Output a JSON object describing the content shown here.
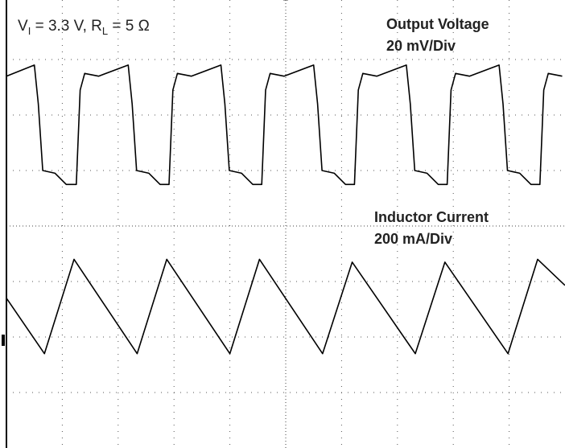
{
  "chart_data": {
    "type": "line",
    "title_parts": [
      "V",
      "I",
      " = 3.3 V, R",
      "L",
      " = 5 Ω"
    ],
    "xlim": [
      0,
      10
    ],
    "ylim": [
      0,
      8
    ],
    "grid": true,
    "series": [
      {
        "name": "Output Voltage",
        "scale": "20 mV/Div",
        "color": "#000000",
        "x": [
          0,
          0.5,
          0.57,
          0.65,
          0.87,
          1.07,
          1.25,
          1.32,
          1.4,
          1.65,
          2.18,
          2.25,
          2.33,
          2.55,
          2.75,
          2.91,
          2.98,
          3.06,
          3.31,
          3.84,
          3.91,
          3.99,
          4.21,
          4.41,
          4.57,
          4.64,
          4.72,
          4.97,
          5.5,
          5.57,
          5.65,
          5.87,
          6.07,
          6.23,
          6.3,
          6.38,
          6.63,
          7.16,
          7.23,
          7.31,
          7.53,
          7.73,
          7.89,
          7.96,
          8.04,
          8.29,
          8.82,
          8.89,
          8.97,
          9.19,
          9.39,
          9.55,
          9.62,
          9.7,
          9.95
        ],
        "values": [
          6.7,
          6.9,
          6.2,
          5.0,
          4.95,
          4.75,
          4.75,
          6.45,
          6.75,
          6.7,
          6.9,
          6.2,
          5.0,
          4.95,
          4.75,
          4.75,
          6.45,
          6.75,
          6.7,
          6.9,
          6.2,
          5.0,
          4.95,
          4.75,
          4.75,
          6.45,
          6.75,
          6.7,
          6.9,
          6.2,
          5.0,
          4.95,
          4.75,
          4.75,
          6.45,
          6.75,
          6.7,
          6.9,
          6.2,
          5.0,
          4.95,
          4.75,
          4.75,
          6.45,
          6.75,
          6.7,
          6.9,
          6.2,
          5.0,
          4.95,
          4.75,
          4.75,
          6.45,
          6.75,
          6.7
        ]
      },
      {
        "name": "Inductor Current",
        "scale": "200 mA/Div",
        "color": "#000000",
        "x": [
          0,
          0.68,
          1.21,
          2.34,
          2.87,
          4.0,
          4.53,
          5.66,
          6.19,
          7.32,
          7.85,
          8.98,
          9.51,
          10
        ],
        "values": [
          2.7,
          1.7,
          3.4,
          1.7,
          3.4,
          1.7,
          3.4,
          1.7,
          3.35,
          1.7,
          3.35,
          1.7,
          3.4,
          2.93
        ]
      }
    ]
  }
}
